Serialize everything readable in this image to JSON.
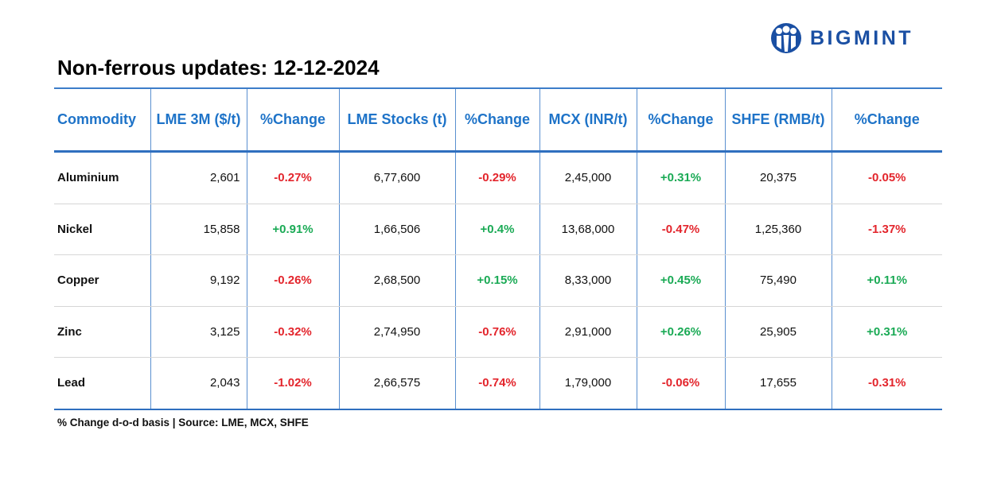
{
  "brand": {
    "name": "BIGMINT",
    "primary_color": "#1a4fa3"
  },
  "report": {
    "title": "Non-ferrous updates: 12-12-2024"
  },
  "table": {
    "headers": [
      "Commodity",
      "LME 3M ($/t)",
      "%Change",
      "LME Stocks (t)",
      "%Change",
      "MCX (INR/t)",
      "%Change",
      "SHFE (RMB/t)",
      "%Change"
    ],
    "rows": [
      [
        "Aluminium",
        "2,601",
        "-0.27%",
        "6,77,600",
        "-0.29%",
        "2,45,000",
        "+0.31%",
        "20,375",
        "-0.05%"
      ],
      [
        "Nickel",
        "15,858",
        "+0.91%",
        "1,66,506",
        "+0.4%",
        "13,68,000",
        "-0.47%",
        "1,25,360",
        "-1.37%"
      ],
      [
        "Copper",
        "9,192",
        "-0.26%",
        "2,68,500",
        "+0.15%",
        "8,33,000",
        "+0.45%",
        "75,490",
        "+0.11%"
      ],
      [
        "Zinc",
        "3,125",
        "-0.32%",
        "2,74,950",
        "-0.76%",
        "2,91,000",
        "+0.26%",
        "25,905",
        "+0.31%"
      ],
      [
        "Lead",
        "2,043",
        "-1.02%",
        "2,66,575",
        "-0.74%",
        "1,79,000",
        "-0.06%",
        "17,655",
        "-0.31%"
      ]
    ],
    "colors": {
      "header": "#1e73c8",
      "negative": "#e3252c",
      "positive": "#1aaa55",
      "rule": "#2f6fbf"
    }
  },
  "footnote": "% Change d-o-d basis | Source: LME, MCX, SHFE"
}
